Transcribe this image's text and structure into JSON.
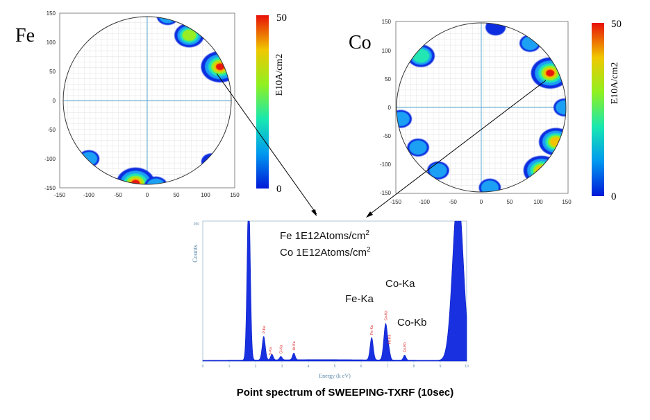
{
  "maps": [
    {
      "element_label": "Fe",
      "type": "heatmap",
      "x_ticks": [
        "-150",
        "-100",
        "-50",
        "0",
        "50",
        "100",
        "150"
      ],
      "y_ticks": [
        "150",
        "100",
        "50",
        "0",
        "-50",
        "-100",
        "-150"
      ],
      "xlim": [
        -150,
        150
      ],
      "ylim": [
        -150,
        150
      ],
      "colorbar": {
        "label": "E10A/cm2",
        "max_label": "50",
        "min_label": "0",
        "max": 50,
        "min": 0
      },
      "hotspots": [
        {
          "x": 35,
          "y": 145,
          "level": 12
        },
        {
          "x": 72,
          "y": 112,
          "level": 30
        },
        {
          "x": 125,
          "y": 58,
          "level": 50
        },
        {
          "x": -100,
          "y": -100,
          "level": 10
        },
        {
          "x": 110,
          "y": -105,
          "level": 8
        },
        {
          "x": -20,
          "y": -142,
          "level": 50
        },
        {
          "x": 15,
          "y": -147,
          "level": 15
        }
      ]
    },
    {
      "element_label": "Co",
      "type": "heatmap",
      "x_ticks": [
        "-150",
        "-100",
        "-50",
        "0",
        "50",
        "100",
        "150"
      ],
      "y_ticks": [
        "150",
        "100",
        "50",
        "0",
        "-50",
        "-100",
        "-150"
      ],
      "xlim": [
        -150,
        150
      ],
      "ylim": [
        -150,
        150
      ],
      "colorbar": {
        "label": "E10A/cm2",
        "max_label": "50",
        "min_label": "0",
        "max": 50,
        "min": 0
      },
      "hotspots": [
        {
          "x": -105,
          "y": 90,
          "level": 25
        },
        {
          "x": 25,
          "y": 140,
          "level": 8
        },
        {
          "x": 85,
          "y": 112,
          "level": 10
        },
        {
          "x": 120,
          "y": 60,
          "level": 50
        },
        {
          "x": 145,
          "y": 0,
          "level": 12
        },
        {
          "x": -140,
          "y": -20,
          "level": 12
        },
        {
          "x": -110,
          "y": -70,
          "level": 12
        },
        {
          "x": -75,
          "y": -110,
          "level": 12
        },
        {
          "x": 15,
          "y": -140,
          "level": 12
        },
        {
          "x": 130,
          "y": -60,
          "level": 40
        },
        {
          "x": 105,
          "y": -110,
          "level": 45
        }
      ]
    }
  ],
  "chart_data": {
    "type": "line",
    "title": "Point spectrum of SWEEPING-TXRF (10sec)",
    "xlabel": "Energy (k eV)",
    "ylabel": "Counts",
    "xlim": [
      0,
      10
    ],
    "ylim": [
      0,
      250
    ],
    "y_top_tick": "250",
    "x_ticks": [
      "0",
      "1",
      "2",
      "3",
      "4",
      "5",
      "6",
      "7",
      "8",
      "9",
      "10"
    ],
    "annotations": [
      "Fe 1E12Atoms/cm2",
      "Co 1E12Atoms/cm2"
    ],
    "peak_labels": [
      {
        "text": "Fe-Ka",
        "energy": 6.4
      },
      {
        "text": "Co-Ka",
        "energy": 6.93
      },
      {
        "text": "Co-Kb",
        "energy": 7.65
      }
    ],
    "small_peak_labels": [
      "P-Ka",
      "S-Ka",
      "Cl-Ka",
      "Ar-Ka",
      "Fe-Ka",
      "Co-Ka",
      "Fe-Kb",
      "Co-Kb"
    ],
    "peaks": [
      {
        "energy": 1.74,
        "height": 300,
        "width": 0.06
      },
      {
        "energy": 2.31,
        "height": 42,
        "width": 0.06
      },
      {
        "energy": 2.62,
        "height": 10,
        "width": 0.05
      },
      {
        "energy": 2.96,
        "height": 6,
        "width": 0.05
      },
      {
        "energy": 3.45,
        "height": 12,
        "width": 0.05
      },
      {
        "energy": 6.4,
        "height": 40,
        "width": 0.06
      },
      {
        "energy": 6.93,
        "height": 65,
        "width": 0.07
      },
      {
        "energy": 7.06,
        "height": 12,
        "width": 0.05
      },
      {
        "energy": 7.65,
        "height": 9,
        "width": 0.05
      },
      {
        "energy": 9.67,
        "height": 300,
        "width": 0.2
      }
    ]
  }
}
